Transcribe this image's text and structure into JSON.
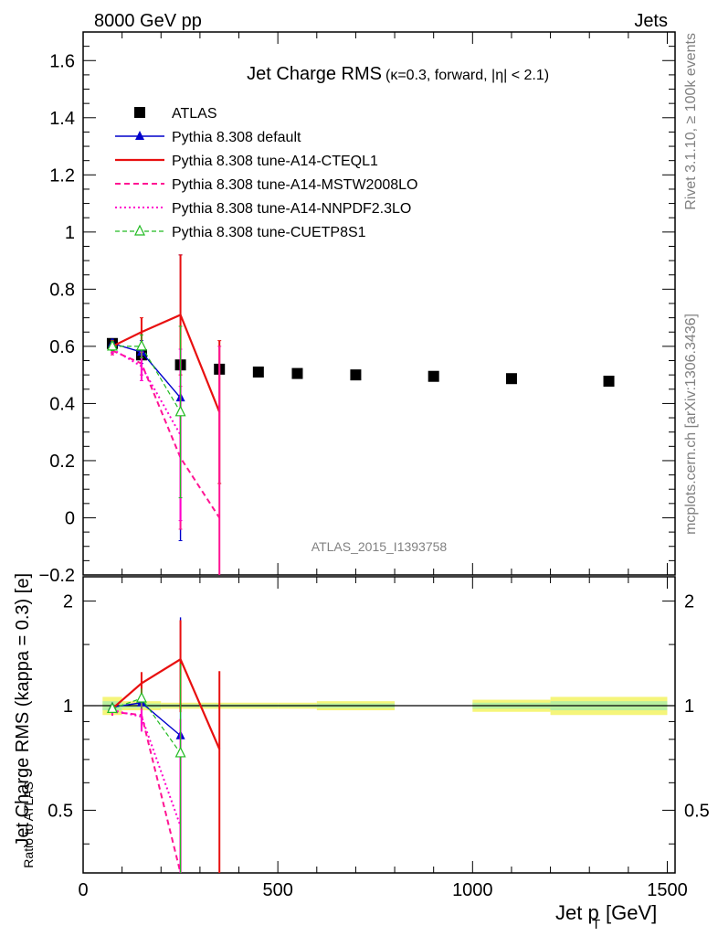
{
  "header": {
    "left": "8000 GeV pp",
    "right": "Jets"
  },
  "side_labels": {
    "rivet": "Rivet 3.1.10, ≥ 100k events",
    "mcplots": "mcplots.cern.ch [arXiv:1306.3436]"
  },
  "analysis_id": "ATLAS_2015_I1393758",
  "chart_data": [
    {
      "type": "line",
      "title": "Jet Charge RMS",
      "title_suffix": "(κ=0.3, forward, |η| < 2.1)",
      "xlabel": "Jet p_T [GeV]",
      "xlabel_main": "Jet p",
      "xlabel_sub": "T",
      "xlabel_unit": "[GeV]",
      "ylabel": "Jet Charge RMS (kappa = 0.3) [e]",
      "xlim": [
        0,
        1520
      ],
      "ylim": [
        -0.2,
        1.7
      ],
      "x_ticks": [
        0,
        500,
        1000,
        1500
      ],
      "y_ticks": [
        "−0.2",
        "0",
        "0.2",
        "0.4",
        "0.6",
        "0.8",
        "1",
        "1.2",
        "1.4",
        "1.6"
      ],
      "legend_position": "top-left",
      "series": [
        {
          "name": "ATLAS",
          "style": "data",
          "color": "#000000",
          "marker": "square",
          "points": [
            [
              75,
              0.61
            ],
            [
              150,
              0.57
            ],
            [
              250,
              0.535
            ],
            [
              350,
              0.52
            ],
            [
              450,
              0.51
            ],
            [
              550,
              0.505
            ],
            [
              700,
              0.5
            ],
            [
              900,
              0.495
            ],
            [
              1100,
              0.487
            ],
            [
              1350,
              0.478
            ]
          ]
        },
        {
          "name": "Pythia 8.308 default",
          "color": "#0000cc",
          "dash": "",
          "width": 1.4,
          "marker": "triangle",
          "points": [
            [
              75,
              0.61
            ],
            [
              150,
              0.58
            ],
            [
              250,
              0.42
            ]
          ],
          "errors": [
            0.015,
            0.04,
            0.5
          ]
        },
        {
          "name": "Pythia 8.308 tune-A14-CTEQL1",
          "color": "#e81010",
          "dash": "",
          "width": 2.2,
          "marker": "none",
          "points": [
            [
              75,
              0.6
            ],
            [
              150,
              0.65
            ],
            [
              250,
              0.71
            ],
            [
              350,
              0.37
            ]
          ],
          "errors": [
            0.02,
            0.05,
            0.21,
            0.25
          ]
        },
        {
          "name": "Pythia 8.308 tune-A14-MSTW2008LO",
          "color": "#ff1493",
          "dash": "6,4",
          "width": 2.0,
          "marker": "none",
          "points": [
            [
              75,
              0.585
            ],
            [
              150,
              0.54
            ],
            [
              250,
              0.21
            ],
            [
              350,
              0.0
            ]
          ],
          "errors": [
            0.015,
            0.04,
            0.25,
            0.6
          ]
        },
        {
          "name": "Pythia 8.308 tune-A14-NNPDF2.3LO",
          "color": "#ff00cc",
          "dash": "2,3",
          "width": 2.0,
          "marker": "none",
          "points": [
            [
              75,
              0.59
            ],
            [
              150,
              0.53
            ],
            [
              250,
              0.29
            ]
          ],
          "errors": [
            0.015,
            0.05,
            0.3
          ]
        },
        {
          "name": "Pythia 8.308 tune-CUETP8S1",
          "color": "#22bb22",
          "dash": "5,3",
          "width": 1.2,
          "marker": "open-triangle",
          "points": [
            [
              75,
              0.6
            ],
            [
              150,
              0.6
            ],
            [
              250,
              0.37
            ]
          ],
          "errors": [
            0.015,
            0.04,
            0.3
          ]
        }
      ]
    },
    {
      "type": "line",
      "title": "",
      "ylabel": "Ratio to ATLAS",
      "xlim": [
        0,
        1520
      ],
      "ylim": [
        0.33,
        2.35
      ],
      "y_scale": "log",
      "y_ticks": [
        "0.5",
        "1",
        "2"
      ],
      "band": [
        [
          50,
          100,
          0.06
        ],
        [
          100,
          200,
          0.03
        ],
        [
          200,
          300,
          0.02
        ],
        [
          300,
          400,
          0.02
        ],
        [
          400,
          500,
          0.02
        ],
        [
          500,
          600,
          0.02
        ],
        [
          600,
          800,
          0.03
        ],
        [
          1000,
          1200,
          0.04
        ],
        [
          1200,
          1500,
          0.06
        ]
      ],
      "series": [
        {
          "name": "Pythia 8.308 default",
          "points": [
            [
              75,
              0.99
            ],
            [
              150,
              1.02
            ],
            [
              250,
              0.82
            ]
          ]
        },
        {
          "name": "Pythia 8.308 tune-A14-CTEQL1",
          "points": [
            [
              75,
              0.98
            ],
            [
              150,
              1.16
            ],
            [
              250,
              1.36
            ],
            [
              350,
              0.75
            ]
          ]
        },
        {
          "name": "Pythia 8.308 tune-A14-MSTW2008LO",
          "points": [
            [
              75,
              0.96
            ],
            [
              150,
              0.94
            ],
            [
              250,
              0.33
            ]
          ]
        },
        {
          "name": "Pythia 8.308 tune-A14-NNPDF2.3LO",
          "points": [
            [
              75,
              0.97
            ],
            [
              150,
              0.93
            ],
            [
              250,
              0.45
            ]
          ]
        },
        {
          "name": "Pythia 8.308 tune-CUETP8S1",
          "points": [
            [
              75,
              0.98
            ],
            [
              150,
              1.05
            ],
            [
              250,
              0.73
            ]
          ]
        }
      ]
    }
  ]
}
